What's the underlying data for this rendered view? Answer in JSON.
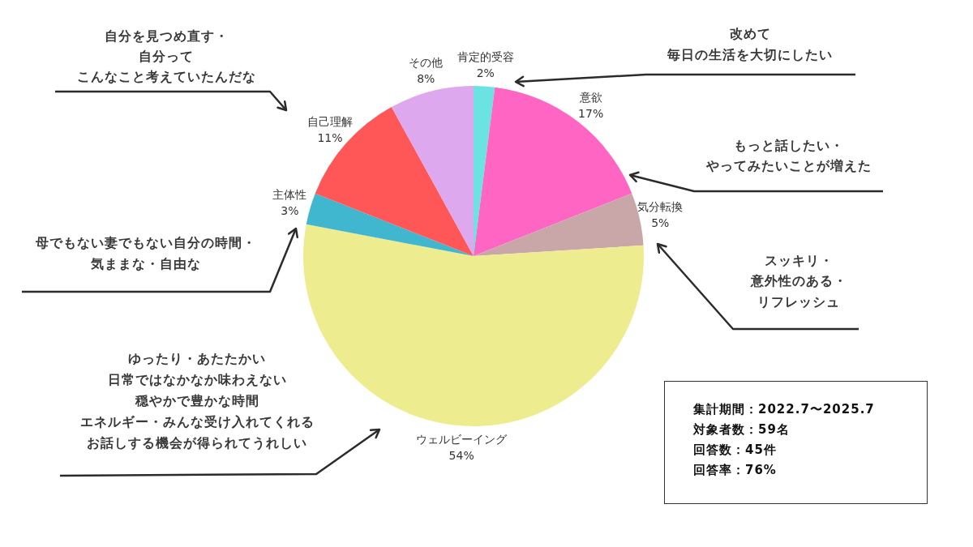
{
  "chart_data": {
    "type": "pie",
    "categories": [
      "肯定的受容",
      "意欲",
      "気分転換",
      "ウェルビーイング",
      "主体性",
      "自己理解",
      "その他"
    ],
    "values": [
      2,
      17,
      5,
      54,
      3,
      11,
      8
    ],
    "colors": [
      "#6ce3e3",
      "#ff66c4",
      "#c9a7a9",
      "#eded8f",
      "#41b6cf",
      "#ff5757",
      "#dea8ef"
    ],
    "value_labels": [
      "2%",
      "17%",
      "5%",
      "54%",
      "3%",
      "11%",
      "8%"
    ],
    "annotations": [
      "改めて",
      "毎日の生活を大切にしたい",
      "もっと話したい・",
      "やってみたいことが増えた",
      "スッキリ・",
      "意外性のある・",
      "リフレッシュ",
      "ゆったり・あたたかい",
      "日常ではなかなか味わえない",
      "穏やかで豊かな時間",
      "エネルギー・みんな受け入れてくれる",
      "お話しする機会が得られてうれしい",
      "母でもない妻でもない自分の時間・",
      "気ままな・自由な",
      "自分を見つめ直す・",
      "自分って",
      "こんなこと考えていたんだな",
      "集計期間：2022.7〜2025.7",
      "対象者数：59名",
      "回答数：45件",
      "回答率：76%"
    ],
    "legend": false
  }
}
